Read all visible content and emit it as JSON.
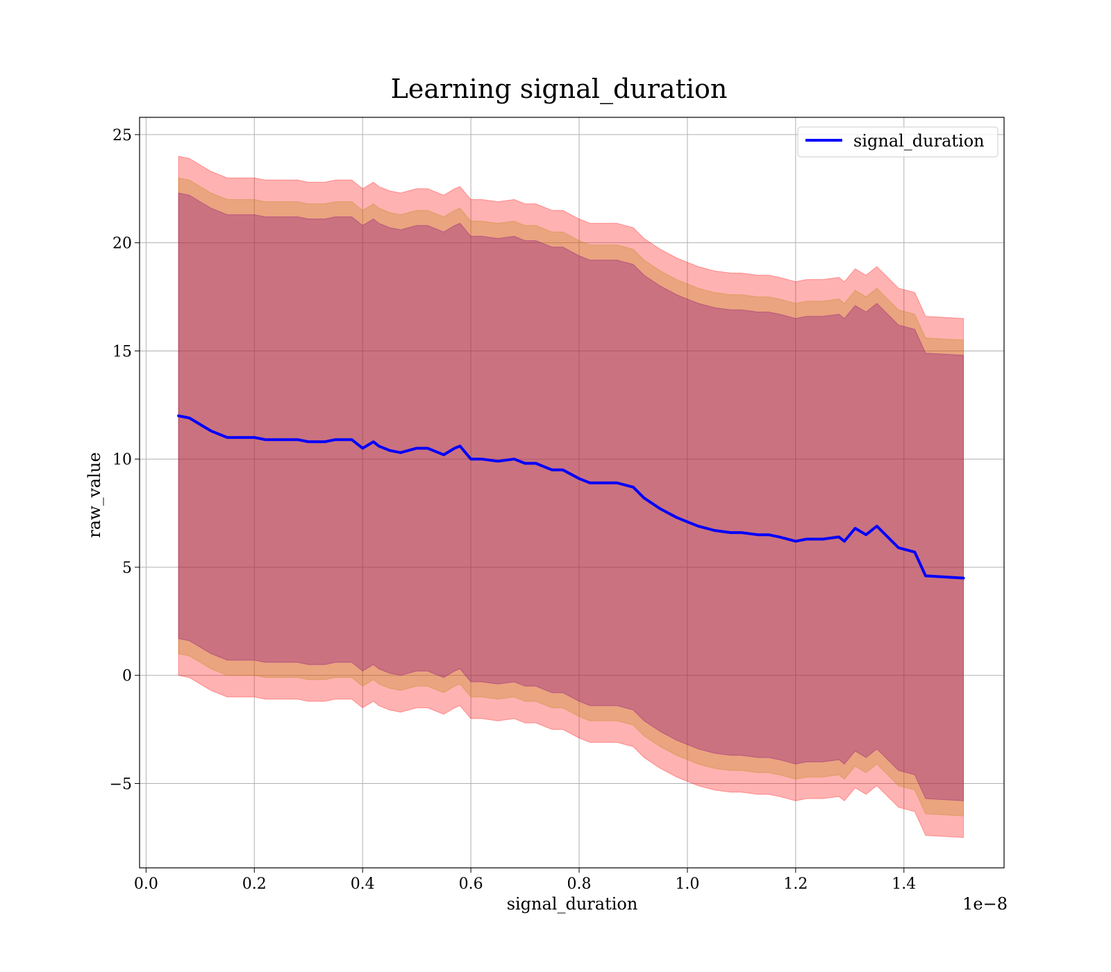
{
  "chart_data": {
    "type": "area",
    "title": "Learning signal_duration",
    "xlabel": "signal_duration",
    "ylabel": "raw_value",
    "x_offset_label": "1e−8",
    "xlim": [
      -0.012,
      1.585
    ],
    "ylim": [
      -8.9,
      25.8
    ],
    "x_ticks": [
      0.0,
      0.2,
      0.4,
      0.6,
      0.8,
      1.0,
      1.2,
      1.4
    ],
    "x_tick_labels": [
      "0.0",
      "0.2",
      "0.4",
      "0.6",
      "0.8",
      "1.0",
      "1.2",
      "1.4"
    ],
    "y_ticks": [
      -5,
      0,
      5,
      10,
      15,
      20,
      25
    ],
    "y_tick_labels": [
      "−5",
      "0",
      "5",
      "10",
      "15",
      "20",
      "25"
    ],
    "grid": true,
    "legend_position": "upper right",
    "colors": {
      "line": "#0000ff",
      "band_outer": "#ff0000",
      "band_middle": "#b8860b",
      "band_inner": "#800080",
      "grid": "#b0b0b0"
    },
    "series": [
      {
        "name": "signal_duration",
        "x": [
          0.06,
          0.08,
          0.1,
          0.12,
          0.15,
          0.18,
          0.2,
          0.22,
          0.25,
          0.28,
          0.3,
          0.33,
          0.35,
          0.38,
          0.4,
          0.42,
          0.43,
          0.45,
          0.47,
          0.5,
          0.52,
          0.55,
          0.57,
          0.58,
          0.6,
          0.62,
          0.65,
          0.68,
          0.7,
          0.72,
          0.75,
          0.77,
          0.8,
          0.82,
          0.85,
          0.87,
          0.9,
          0.92,
          0.95,
          0.98,
          1.0,
          1.02,
          1.05,
          1.08,
          1.1,
          1.13,
          1.15,
          1.17,
          1.2,
          1.22,
          1.25,
          1.28,
          1.29,
          1.31,
          1.33,
          1.35,
          1.37,
          1.39,
          1.42,
          1.44,
          1.51
        ],
        "values": [
          12.0,
          11.9,
          11.6,
          11.3,
          11.0,
          11.0,
          11.0,
          10.9,
          10.9,
          10.9,
          10.8,
          10.8,
          10.9,
          10.9,
          10.5,
          10.8,
          10.6,
          10.4,
          10.3,
          10.5,
          10.5,
          10.2,
          10.5,
          10.6,
          10.0,
          10.0,
          9.9,
          10.0,
          9.8,
          9.8,
          9.5,
          9.5,
          9.1,
          8.9,
          8.9,
          8.9,
          8.7,
          8.2,
          7.7,
          7.3,
          7.1,
          6.9,
          6.7,
          6.6,
          6.6,
          6.5,
          6.5,
          6.4,
          6.2,
          6.3,
          6.3,
          6.4,
          6.2,
          6.8,
          6.5,
          6.9,
          6.4,
          5.9,
          5.7,
          4.6,
          4.5
        ]
      }
    ],
    "bands": [
      {
        "color": "band_outer",
        "opacity": 0.3,
        "offset": 12.0
      },
      {
        "color": "band_middle",
        "opacity": 0.3,
        "offset": 11.0
      },
      {
        "color": "band_inner",
        "opacity": 0.3,
        "offset": 10.3
      }
    ]
  }
}
